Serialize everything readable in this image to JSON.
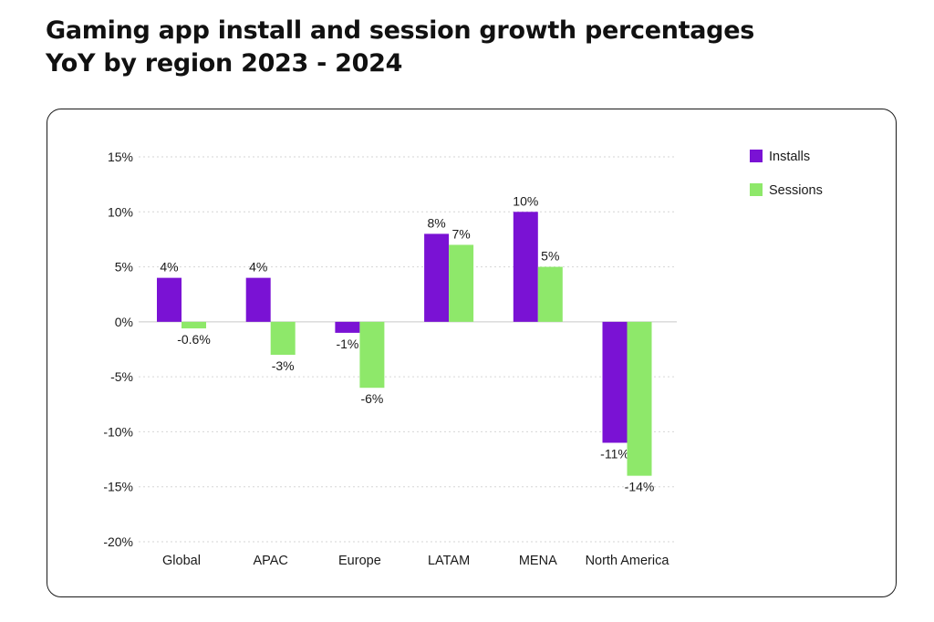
{
  "title_line1": "Gaming app install and session growth percentages",
  "title_line2": "YoY by region 2023 - 2024",
  "chart_data": {
    "type": "bar",
    "categories": [
      "Global",
      "APAC",
      "Europe",
      "LATAM",
      "MENA",
      "North America"
    ],
    "series": [
      {
        "name": "Installs",
        "color": "#7a12d4",
        "values": [
          4,
          4,
          -1,
          8,
          10,
          -11
        ],
        "labels": [
          "4%",
          "4%",
          "-1%",
          "8%",
          "10%",
          "-11%"
        ]
      },
      {
        "name": "Sessions",
        "color": "#8ee86a",
        "values": [
          -0.6,
          -3,
          -6,
          7,
          5,
          -14
        ],
        "labels": [
          "-0.6%",
          "-3%",
          "-6%",
          "7%",
          "5%",
          "-14%"
        ]
      }
    ],
    "yticks": [
      15,
      10,
      5,
      0,
      -5,
      -10,
      -15,
      -20
    ],
    "ytick_labels": [
      "15%",
      "10%",
      "5%",
      "0%",
      "-5%",
      "-10%",
      "-15%",
      "-20%"
    ],
    "ylim": [
      -20,
      15
    ],
    "grid": true,
    "legend_position": "top-right"
  }
}
